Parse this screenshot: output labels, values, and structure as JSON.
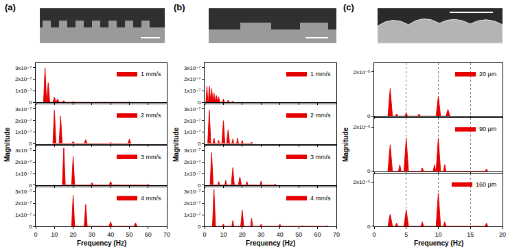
{
  "chart_data": [
    {
      "type": "area",
      "title": "(a)",
      "x_label": "Frequency (Hz)",
      "y_label": "Magnitude",
      "xlim": [
        0,
        70
      ],
      "xticks": [
        0,
        10,
        20,
        30,
        40,
        50,
        60,
        70
      ],
      "ylim": [
        0,
        3.4e-07
      ],
      "yticks": [
        0,
        {
          "value": 1e-07,
          "label": "1x10⁻⁷"
        },
        {
          "value": 2e-07,
          "label": "2x10⁻⁷"
        },
        {
          "value": 3e-07,
          "label": "3x10⁻⁷"
        }
      ],
      "grid": false,
      "legend": "upper right",
      "color": "#e60000",
      "series": [
        {
          "name": "1 mm/s",
          "x": [
            4.2,
            5,
            5.8,
            5.9,
            6.7,
            7.5,
            9.2,
            10,
            10.8,
            10.9,
            11.7,
            12.5,
            14.2,
            15,
            15.8,
            19.2,
            20,
            20.8,
            49.2,
            50,
            50.8
          ],
          "values": [
            0,
            3e-07,
            0,
            0,
            1.7e-07,
            0,
            0,
            4.5e-08,
            0,
            0,
            3e-08,
            0,
            0,
            1.5e-08,
            0,
            0,
            5e-09,
            0,
            0,
            3e-09,
            0
          ]
        },
        {
          "name": "2 mm/s",
          "x": [
            9.2,
            10,
            10.8,
            12.5,
            13.3,
            14.1,
            19.2,
            20,
            20.8,
            25.9,
            26.7,
            27.5,
            39.2,
            40,
            40.8,
            49.2,
            50,
            50.8
          ],
          "values": [
            0,
            2.9e-07,
            0,
            0,
            2.4e-07,
            0,
            0,
            2e-08,
            0,
            0,
            3.5e-08,
            0,
            0,
            1e-08,
            0,
            0,
            4e-08,
            0
          ]
        },
        {
          "name": "3 mm/s",
          "x": [
            14.2,
            15,
            15.8,
            19.2,
            20,
            20.8,
            29.2,
            30,
            30.8,
            39.2,
            40,
            40.8,
            59.2,
            60,
            60.8
          ],
          "values": [
            0,
            3.2e-07,
            0,
            0,
            2.5e-07,
            0,
            0,
            2e-08,
            0,
            0,
            3e-08,
            0,
            0,
            5e-09,
            0
          ]
        },
        {
          "name": "4 mm/s",
          "x": [
            19.2,
            20,
            20.8,
            25.9,
            26.7,
            27.5,
            39.2,
            40,
            40.8,
            52.5,
            53.3,
            54.1
          ],
          "values": [
            0,
            2.7e-07,
            0,
            0,
            1.9e-07,
            0,
            0,
            4e-08,
            0,
            0,
            3e-08,
            0
          ]
        }
      ]
    },
    {
      "type": "area",
      "title": "(b)",
      "x_label": "Frequency (Hz)",
      "y_label": "Magnitude",
      "xlim": [
        0,
        70
      ],
      "xticks": [
        0,
        10,
        20,
        30,
        40,
        50,
        60,
        70
      ],
      "ylim": [
        0,
        3.4e-07
      ],
      "yticks": [
        0,
        {
          "value": 1e-07,
          "label": "1x10⁻⁷"
        },
        {
          "value": 2e-07,
          "label": "2x10⁻⁷"
        },
        {
          "value": 3e-07,
          "label": "3x10⁻⁷"
        }
      ],
      "grid": false,
      "legend": "upper right",
      "color": "#e60000",
      "series": [
        {
          "name": "1 mm/s",
          "x": [
            0.75,
            1.25,
            1.75,
            2.0,
            2.5,
            3.0,
            3.25,
            3.75,
            4.25,
            4.5,
            5,
            5.5,
            5.75,
            6.25,
            6.75,
            7.0,
            7.5,
            8.0,
            9.5,
            10,
            10.5,
            12,
            12.5,
            13,
            14.5,
            15,
            15.5
          ],
          "values": [
            0,
            1.4e-07,
            0,
            0,
            1.4e-07,
            0,
            0,
            1.2e-07,
            0,
            0,
            8e-08,
            0,
            0,
            6e-08,
            0,
            0,
            5e-08,
            0,
            0,
            3e-08,
            0,
            0,
            2e-08,
            0,
            0,
            1e-08,
            0
          ]
        },
        {
          "name": "2 mm/s",
          "x": [
            1.7,
            2.5,
            3.3,
            4.5,
            5,
            5.5,
            7,
            7.5,
            8,
            9.2,
            10,
            10.8,
            11.7,
            12.5,
            13.3,
            14.5,
            15,
            15.5,
            17,
            17.5,
            18,
            19.5,
            20,
            20.5,
            24.5,
            25,
            25.5
          ],
          "values": [
            0,
            2.9e-07,
            0,
            0,
            5e-08,
            0,
            0,
            3e-08,
            0,
            0,
            2e-07,
            0,
            0,
            1.2e-07,
            0,
            0,
            4e-08,
            0,
            0,
            5e-08,
            0,
            0,
            3e-08,
            0,
            0,
            1.5e-08,
            0
          ]
        },
        {
          "name": "3 mm/s",
          "x": [
            2.95,
            3.75,
            4.55,
            7,
            7.5,
            8,
            10.75,
            11.25,
            11.75,
            14.2,
            15,
            15.8,
            17.95,
            18.75,
            19.55,
            22,
            22.5,
            23,
            29.5,
            30,
            30.5,
            37,
            37.5,
            38
          ],
          "values": [
            0,
            2.8e-07,
            0,
            0,
            3e-08,
            0,
            0,
            4e-08,
            0,
            0,
            1.5e-07,
            0,
            0,
            7e-08,
            0,
            0,
            3e-08,
            0,
            0,
            3.5e-08,
            0,
            0,
            1e-08,
            0
          ]
        },
        {
          "name": "4 mm/s",
          "x": [
            4.2,
            5,
            5.8,
            9.5,
            10,
            10.5,
            14.5,
            15,
            15.5,
            19.2,
            20,
            20.8,
            24.5,
            25,
            25.5,
            29.5,
            30,
            30.5,
            39.5,
            40,
            40.5,
            51.5,
            52,
            52.5,
            64.5,
            65,
            65.5
          ],
          "values": [
            0,
            3.2e-07,
            0,
            0,
            2e-08,
            0,
            0,
            5e-08,
            0,
            0,
            1.4e-07,
            0,
            0,
            7e-08,
            0,
            0,
            2e-08,
            0,
            0,
            2e-08,
            0,
            0,
            5e-09,
            0,
            0,
            5e-09,
            0
          ]
        }
      ]
    },
    {
      "type": "area",
      "title": "(c)",
      "x_label": "Frequency (Hz)",
      "y_label": "Magnitude",
      "xlim": [
        0,
        20
      ],
      "xticks": [
        0,
        5,
        10,
        15,
        20
      ],
      "ylim": [
        0,
        2.4e-05
      ],
      "yticks": [
        0,
        {
          "value": 2e-05,
          "label": "2x10⁻⁵"
        }
      ],
      "grid": "x",
      "legend": "upper right",
      "color": "#e60000",
      "series": [
        {
          "name": "20 μm",
          "x": [
            2.15,
            2.5,
            2.85,
            3.3,
            3.5,
            3.7,
            4.8,
            5,
            5.2,
            6.8,
            7,
            7.2,
            9.65,
            10,
            10.35,
            11.2,
            11.5,
            11.8
          ],
          "values": [
            0,
            1.25e-05,
            0,
            0,
            1e-06,
            0,
            0,
            1.5e-06,
            0,
            0,
            1e-06,
            0,
            0,
            9e-06,
            0,
            0,
            3e-06,
            0
          ]
        },
        {
          "name": "90 μm",
          "x": [
            2.15,
            2.5,
            2.85,
            3.8,
            4,
            4.2,
            4.65,
            5,
            5.35,
            7.3,
            7.5,
            7.7,
            9.2,
            9.4,
            9.6,
            9.65,
            10,
            10.35,
            10.8,
            11,
            11.2,
            17.3,
            17.5,
            17.7
          ],
          "values": [
            0,
            1.2e-05,
            0,
            0,
            3e-06,
            0,
            0,
            1.5e-05,
            0,
            0,
            1.5e-06,
            0,
            0,
            3e-06,
            0,
            0,
            1.5e-05,
            0,
            0,
            3e-06,
            0,
            0,
            1e-06,
            0
          ]
        },
        {
          "name": "160 μm",
          "x": [
            2.15,
            2.5,
            2.85,
            3.3,
            3.5,
            3.7,
            4.65,
            5,
            5.35,
            7.3,
            7.5,
            7.7,
            9.65,
            10,
            10.35,
            10.8,
            11,
            11.2,
            17.3,
            17.5,
            17.7
          ],
          "values": [
            0,
            5.5e-06,
            0,
            0,
            1.5e-06,
            0,
            0,
            7.5e-06,
            0,
            0,
            2e-06,
            0,
            0,
            1.5e-05,
            0,
            0,
            2e-06,
            0,
            0,
            1.5e-06,
            0
          ]
        }
      ]
    }
  ]
}
